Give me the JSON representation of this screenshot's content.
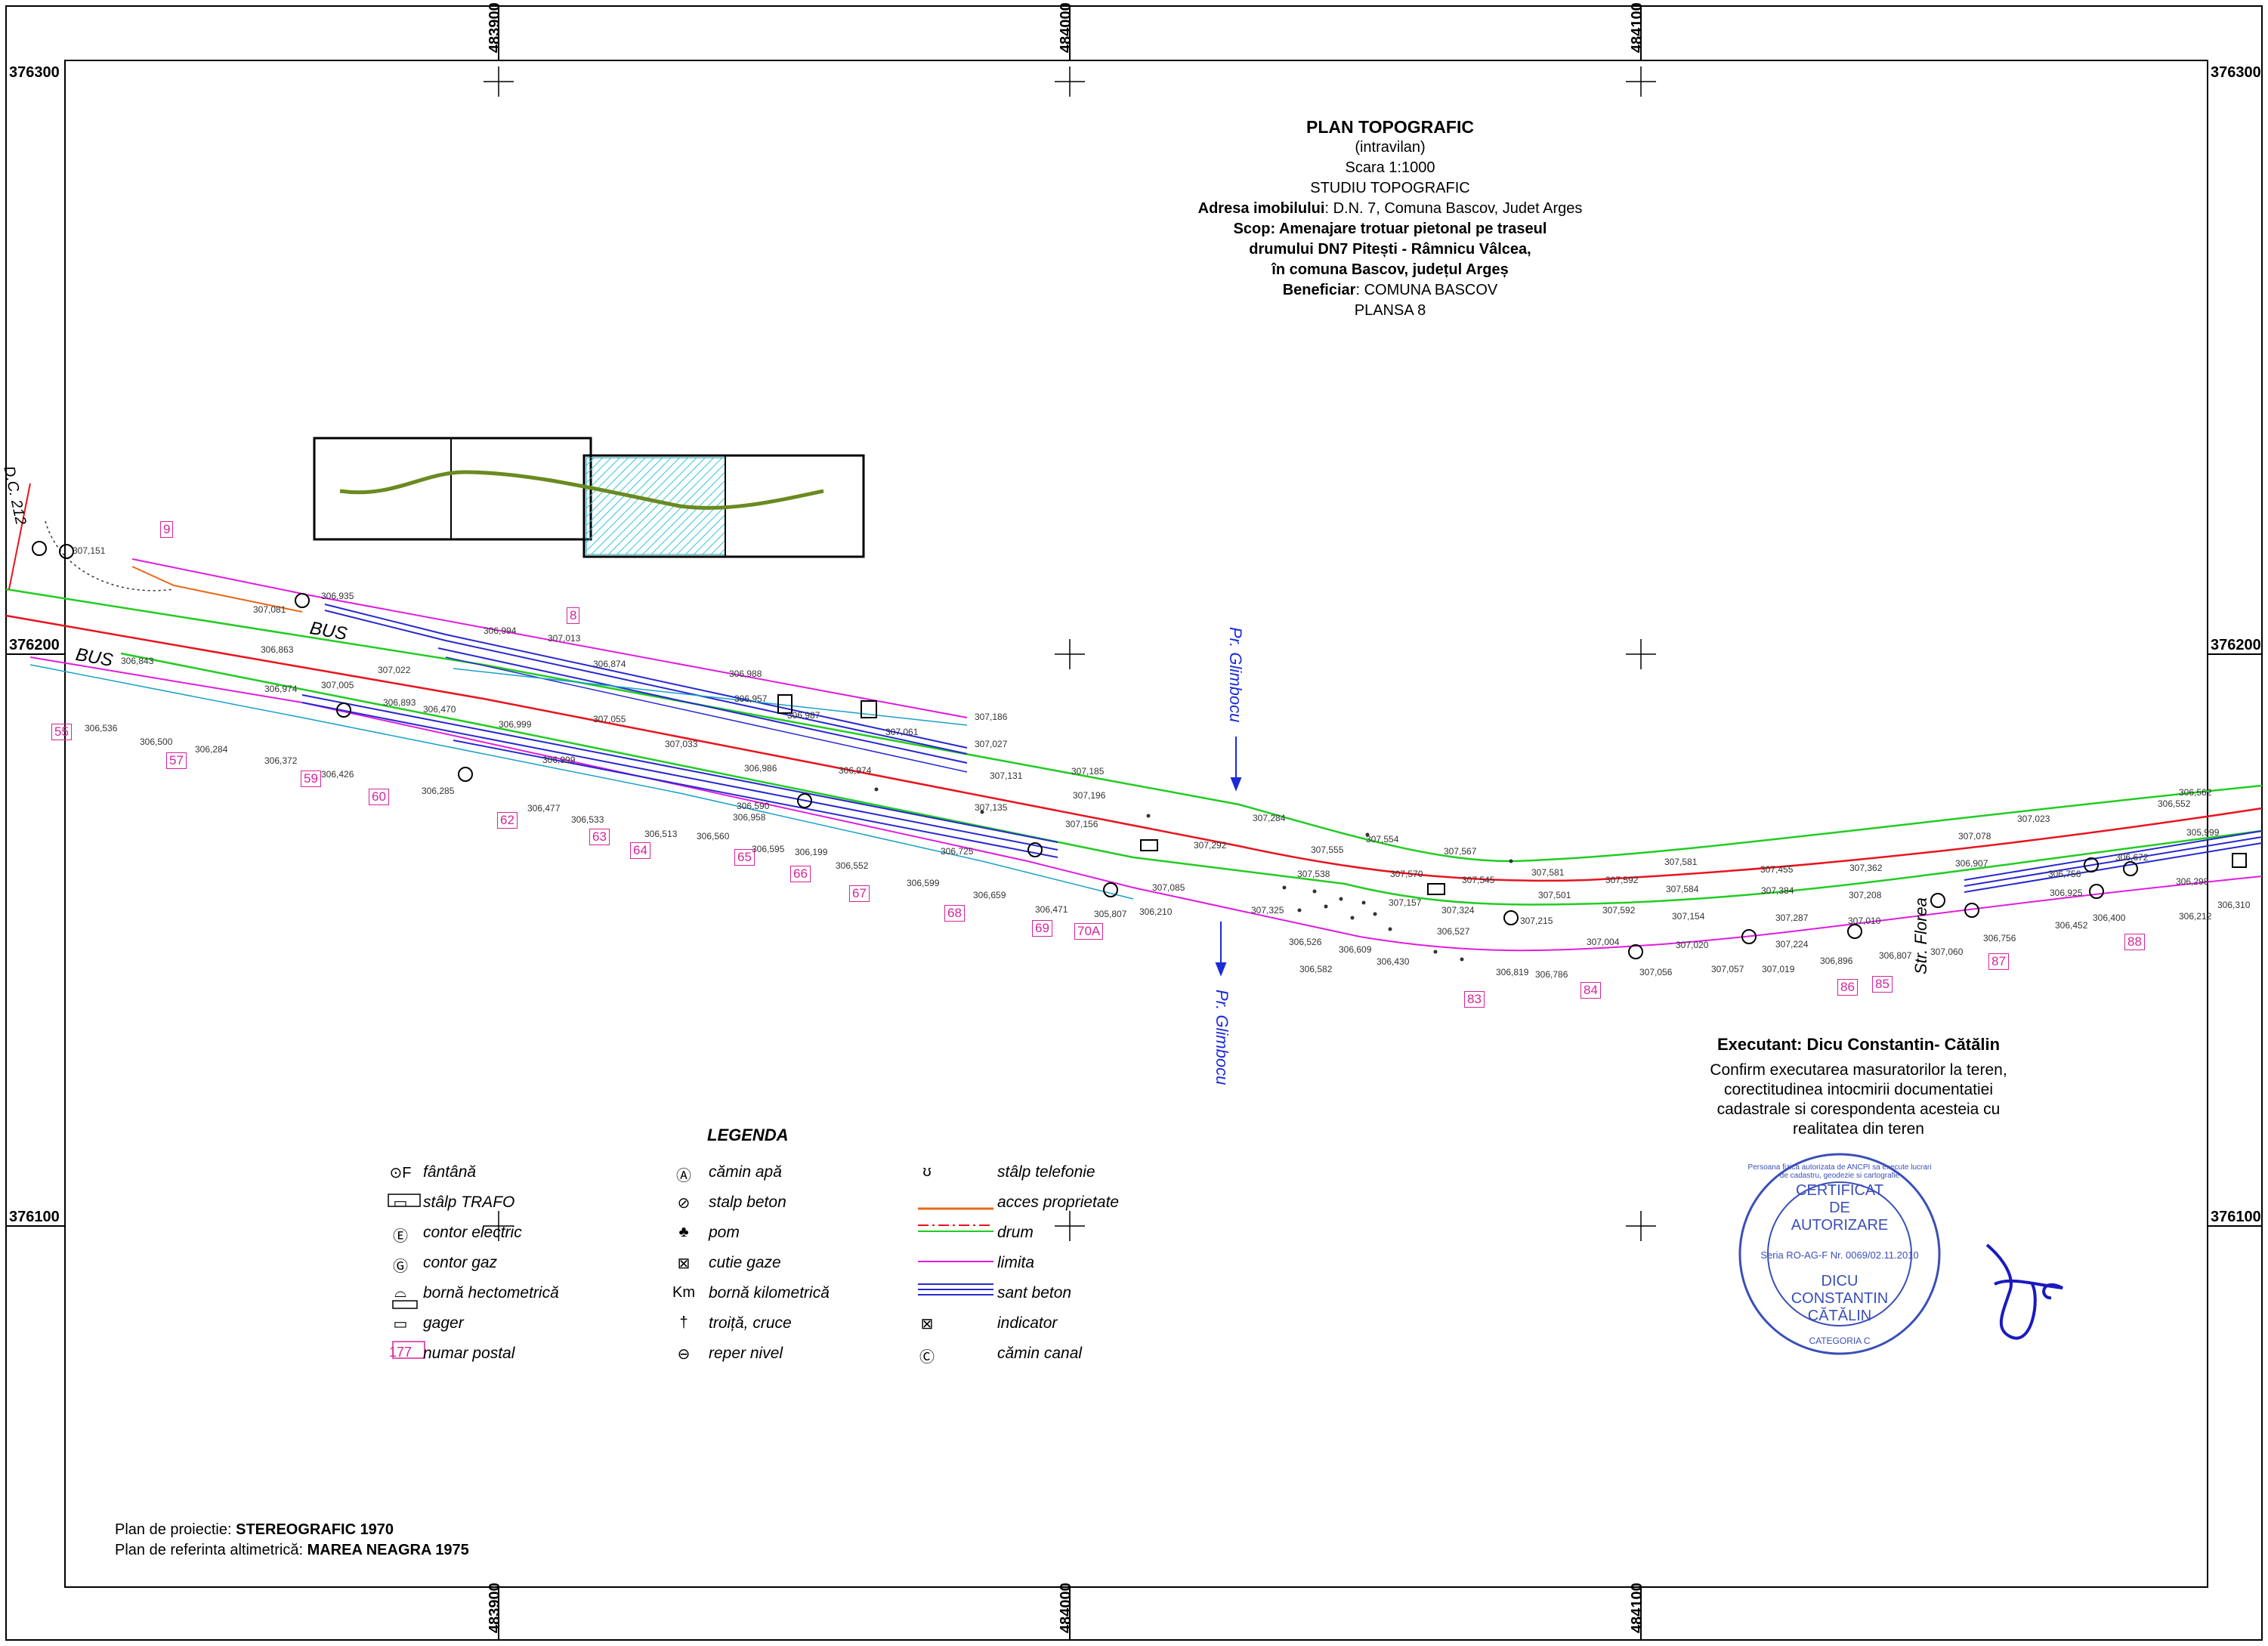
{
  "title_block": {
    "title": "PLAN TOPOGRAFIC",
    "subtitle": "(intravilan)",
    "scale": "Scara 1:1000",
    "study": "STUDIU TOPOGRAFIC",
    "address_label": "Adresa imobilului",
    "address_value": ": D.N. 7, Comuna Bascov, Judet Arges",
    "scope_label": "Scop",
    "scope_line1": ": Amenajare trotuar pietonal pe traseul",
    "scope_line2": "drumului DN7 Pitești - Râmnicu Vâlcea,",
    "scope_line3": "în comuna Bascov, județul Argeș",
    "beneficiary_label": "Beneficiar",
    "beneficiary_value": ": COMUNA BASCOV",
    "sheet": "PLANSA 8"
  },
  "grid_coords": {
    "x_labels": [
      "483900",
      "484000",
      "484100"
    ],
    "y_labels": [
      "376300",
      "376200",
      "376100"
    ]
  },
  "map_labels": {
    "road_dc": "D.C. 212",
    "bus1": "BUS",
    "bus2": "BUS",
    "stream_top": "Pr. Glimbocu",
    "stream_bottom": "Pr. Glimbocu",
    "street_florea": "Str. Florea"
  },
  "postal_numbers": [
    "9",
    "8",
    "55",
    "57",
    "59",
    "60",
    "62",
    "63",
    "64",
    "65",
    "66",
    "67",
    "68",
    "69",
    "70A",
    "83",
    "84",
    "86",
    "85",
    "87",
    "88"
  ],
  "elevations": [
    "307,151",
    "307,081",
    "306,935",
    "306,994",
    "307,013",
    "306,874",
    "306,988",
    "307,186",
    "307,027",
    "306,957",
    "306,987",
    "307,061",
    "306,863",
    "307,022",
    "306,893",
    "306,999",
    "307,055",
    "307,033",
    "306,986",
    "306,974",
    "307,131",
    "307,185",
    "307,196",
    "307,135",
    "307,156",
    "306,843",
    "306,974",
    "307,005",
    "306,470",
    "306,999",
    "306,590",
    "306,958",
    "306,536",
    "306,500",
    "306,284",
    "306,372",
    "306,426",
    "306,285",
    "306,477",
    "306,533",
    "306,513",
    "306,560",
    "306,595",
    "306,199",
    "306,552",
    "306,599",
    "306,659",
    "306,471",
    "305,807",
    "306,210",
    "307,085",
    "306,725",
    "307,292",
    "307,284",
    "307,555",
    "307,554",
    "307,567",
    "307,538",
    "307,570",
    "307,545",
    "307,581",
    "307,592",
    "307,581",
    "307,455",
    "307,362",
    "307,078",
    "307,023",
    "306,552",
    "306,562",
    "305,999",
    "307,325",
    "306,526",
    "306,582",
    "306,609",
    "306,430",
    "307,157",
    "307,324",
    "306,527",
    "307,215",
    "306,819",
    "306,786",
    "307,501",
    "307,592",
    "307,004",
    "307,056",
    "307,154",
    "307,584",
    "307,384",
    "307,208",
    "307,020",
    "307,057",
    "307,019",
    "307,287",
    "307,224",
    "306,896",
    "307,010",
    "306,807",
    "307,060",
    "306,907",
    "306,756",
    "306,756",
    "306,925",
    "306,452",
    "306,672",
    "306,400",
    "306,212",
    "306,298",
    "306,310"
  ],
  "legend": {
    "title": "LEGENDA",
    "items": [
      {
        "symbol": "⊙F",
        "label": "fântână"
      },
      {
        "symbol": "▭",
        "label": "stâlp TRAFO"
      },
      {
        "symbol": "Ⓔ",
        "label": "contor electric"
      },
      {
        "symbol": "Ⓖ",
        "label": "contor gaz"
      },
      {
        "symbol": "⌓",
        "label": "bornă hectometrică"
      },
      {
        "symbol": "▭",
        "label": "gager"
      },
      {
        "symbol": "177",
        "label": "numar postal"
      },
      {
        "symbol": "Ⓐ",
        "label": "cămin apă"
      },
      {
        "symbol": "⊘",
        "label": "stalp beton"
      },
      {
        "symbol": "♣",
        "label": "pom"
      },
      {
        "symbol": "⊠",
        "label": "cutie gaze"
      },
      {
        "symbol": "Km",
        "label": "bornă kilometrică"
      },
      {
        "symbol": "†",
        "label": "troiță, cruce"
      },
      {
        "symbol": "⊖",
        "label": "reper nivel"
      },
      {
        "symbol": "ʊ",
        "label": "stâlp telefonie"
      },
      {
        "symbol": "",
        "label": "acces proprietate"
      },
      {
        "symbol": "",
        "label": "drum"
      },
      {
        "symbol": "",
        "label": "limita"
      },
      {
        "symbol": "",
        "label": "sant beton"
      },
      {
        "symbol": "⊠",
        "label": "indicator"
      },
      {
        "symbol": "Ⓒ",
        "label": "cămin canal"
      }
    ]
  },
  "executant": {
    "heading": "Executant: Dicu Constantin- Cătălin",
    "line1": "Confirm executarea masuratorilor la teren,",
    "line2": "corectitudinea intocmirii documentatiei",
    "line3": "cadastrale si corespondenta acesteia cu",
    "line4": "realitatea din teren"
  },
  "stamp": {
    "ring_text": "Persoana fizica autorizata de ANCPI sa execute lucrari de cadastru, geodezie si cartografie",
    "line1": "CERTIFICAT",
    "line2": "DE",
    "line3": "AUTORIZARE",
    "series": "Seria RO-AG-F  Nr. 0069/02.11.2010",
    "name1": "DICU",
    "name2": "CONSTANTIN",
    "name3": "CĂTĂLIN",
    "category": "CATEGORIA C"
  },
  "projection": {
    "plan_label": "Plan de proiectie",
    "plan_value": "STEREOGRAFIC 1970",
    "ref_label": "Plan de referinta altimetrică",
    "ref_value": "MAREA NEAGRA 1975"
  },
  "colors": {
    "road_green": "#22cc22",
    "axis_red": "#e8141e",
    "limit_magenta": "#e01ce0",
    "ditch_blue": "#2828d0",
    "access_orange": "#e86a1c",
    "stream_blue": "#1a2bd8",
    "stamp_blue": "#3a4fb8",
    "hatch_cyan": "#30c8d8"
  }
}
